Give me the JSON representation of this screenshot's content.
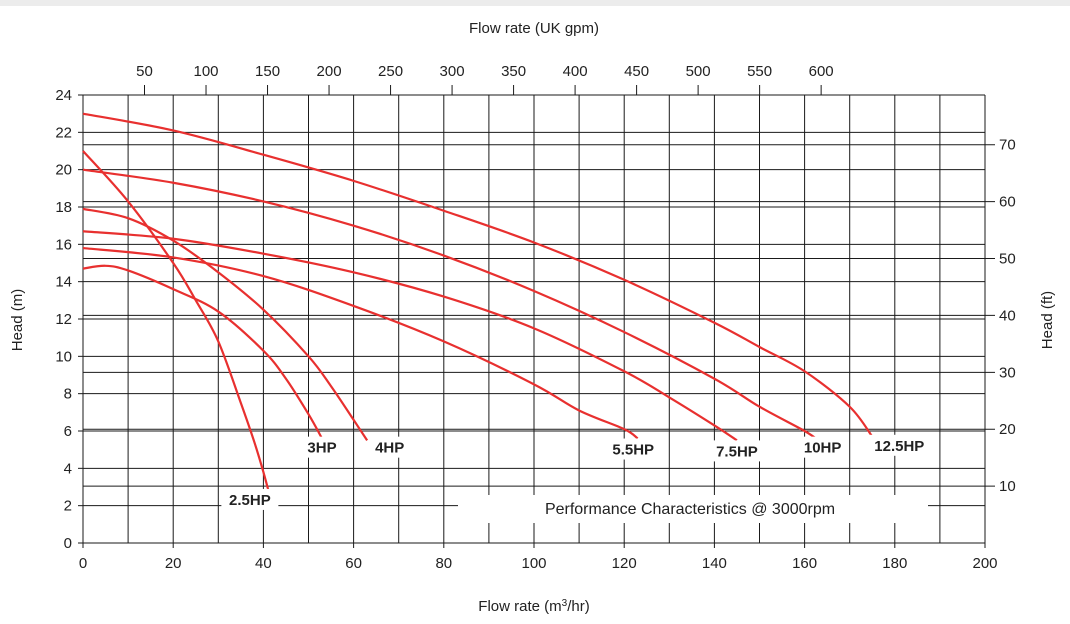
{
  "chart_data": {
    "type": "line",
    "title": "Performance Characteristics @ 3000rpm",
    "xlabel": "Flow rate (m³/hr)",
    "xlabel_parts": {
      "pre": "Flow rate (m",
      "sup": "3",
      "post": "/hr)"
    },
    "ylabel": "Head (m)",
    "x2label": "Flow rate (UK gpm)",
    "y2label": "Head (ft)",
    "xlim": [
      0,
      200
    ],
    "ylim": [
      0,
      24
    ],
    "xticks": [
      0,
      20,
      40,
      60,
      80,
      100,
      120,
      140,
      160,
      180,
      200
    ],
    "yticks": [
      0,
      2,
      4,
      6,
      8,
      10,
      12,
      14,
      16,
      18,
      20,
      22,
      24
    ],
    "x2ticks": [
      50,
      100,
      150,
      200,
      250,
      300,
      350,
      400,
      450,
      500,
      550,
      600
    ],
    "y2ticks": [
      10,
      20,
      30,
      40,
      50,
      60,
      70
    ],
    "x2_per_x": 3.666,
    "y2_per_y": 3.281,
    "grid": true,
    "series": [
      {
        "name": "2.5HP",
        "color": "#e8302f",
        "label_at": [
          37,
          2.2
        ],
        "points": [
          [
            0,
            21
          ],
          [
            10,
            18.3
          ],
          [
            20,
            15
          ],
          [
            25,
            13
          ],
          [
            30,
            10.8
          ],
          [
            35,
            7.5
          ],
          [
            38,
            5.4
          ],
          [
            40,
            3.8
          ],
          [
            42,
            2
          ]
        ]
      },
      {
        "name": "3HP",
        "color": "#e8302f",
        "label_at": [
          53,
          5
        ],
        "points": [
          [
            0,
            14.7
          ],
          [
            5,
            14.85
          ],
          [
            10,
            14.6
          ],
          [
            20,
            13.6
          ],
          [
            30,
            12.4
          ],
          [
            40,
            10.3
          ],
          [
            45,
            8.8
          ],
          [
            50,
            6.9
          ],
          [
            53,
            5.6
          ]
        ]
      },
      {
        "name": "4HP",
        "color": "#e8302f",
        "label_at": [
          68,
          5
        ],
        "points": [
          [
            0,
            17.9
          ],
          [
            10,
            17.4
          ],
          [
            20,
            16.2
          ],
          [
            30,
            14.5
          ],
          [
            40,
            12.5
          ],
          [
            50,
            10
          ],
          [
            55,
            8.4
          ],
          [
            60,
            6.6
          ],
          [
            63,
            5.5
          ]
        ]
      },
      {
        "name": "5.5HP",
        "color": "#e8302f",
        "label_at": [
          122,
          4.9
        ],
        "points": [
          [
            0,
            15.8
          ],
          [
            20,
            15.3
          ],
          [
            40,
            14.3
          ],
          [
            60,
            12.7
          ],
          [
            80,
            10.8
          ],
          [
            100,
            8.5
          ],
          [
            110,
            7.1
          ],
          [
            120,
            6.1
          ],
          [
            123,
            5.6
          ]
        ]
      },
      {
        "name": "7.5HP",
        "color": "#e8302f",
        "label_at": [
          145,
          4.8
        ],
        "points": [
          [
            0,
            16.7
          ],
          [
            20,
            16.3
          ],
          [
            40,
            15.5
          ],
          [
            60,
            14.5
          ],
          [
            80,
            13.2
          ],
          [
            100,
            11.5
          ],
          [
            120,
            9.2
          ],
          [
            130,
            7.8
          ],
          [
            140,
            6.3
          ],
          [
            145,
            5.5
          ]
        ]
      },
      {
        "name": "10HP",
        "color": "#e8302f",
        "label_at": [
          164,
          5
        ],
        "points": [
          [
            0,
            20
          ],
          [
            20,
            19.3
          ],
          [
            40,
            18.3
          ],
          [
            60,
            17
          ],
          [
            80,
            15.4
          ],
          [
            100,
            13.5
          ],
          [
            120,
            11.3
          ],
          [
            140,
            8.8
          ],
          [
            150,
            7.3
          ],
          [
            160,
            6
          ],
          [
            163,
            5.5
          ]
        ]
      },
      {
        "name": "12.5HP",
        "color": "#e8302f",
        "label_at": [
          181,
          5.1
        ],
        "points": [
          [
            0,
            23
          ],
          [
            20,
            22.1
          ],
          [
            40,
            20.8
          ],
          [
            60,
            19.4
          ],
          [
            80,
            17.8
          ],
          [
            100,
            16.1
          ],
          [
            120,
            14.1
          ],
          [
            140,
            11.8
          ],
          [
            150,
            10.5
          ],
          [
            160,
            9.2
          ],
          [
            170,
            7.3
          ],
          [
            175,
            5.7
          ]
        ]
      }
    ]
  }
}
